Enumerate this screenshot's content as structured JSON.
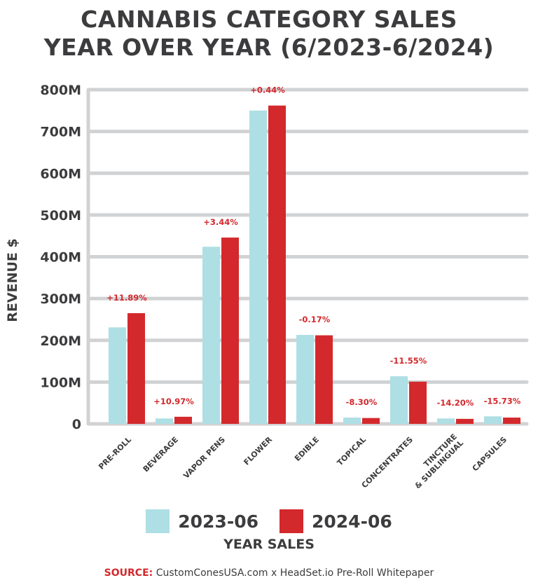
{
  "chart_data": {
    "type": "bar",
    "title": "CANNABIS CATEGORY SALES YEAR OVER YEAR (6/2023-6/2024)",
    "title_lines": [
      "CANNABIS CATEGORY SALES",
      "YEAR OVER YEAR (6/2023-6/2024)"
    ],
    "ylabel": "REVENUE $",
    "xlabel": "YEAR SALES",
    "ylim": [
      0,
      800
    ],
    "yticks": [
      0,
      100,
      200,
      300,
      400,
      500,
      600,
      700,
      800
    ],
    "ytick_labels": [
      "0",
      "100M",
      "200M",
      "300M",
      "400M",
      "500M",
      "600M",
      "700M",
      "800M"
    ],
    "grid": true,
    "legend_placement": "bottom",
    "categories": [
      "PRE-ROLL",
      "BEVERAGE",
      "VAPOR PENS",
      "FLOWER",
      "EDIBLE",
      "TOPICAL",
      "CONCENTRATES",
      "TINCTURE & SUBLINGUAL",
      "CAPSULES"
    ],
    "category_lines": [
      [
        "PRE-ROLL"
      ],
      [
        "BEVERAGE"
      ],
      [
        "VAPOR PENS"
      ],
      [
        "FLOWER"
      ],
      [
        "EDIBLE"
      ],
      [
        "TOPICAL"
      ],
      [
        "CONCENTRATES"
      ],
      [
        "TINCTURE",
        "& SUBLINGUAL"
      ],
      [
        "CAPSULES"
      ]
    ],
    "series": [
      {
        "name": "2023-06",
        "color": "#aedfe4",
        "values": [
          231,
          13,
          424,
          750,
          213,
          15,
          114,
          13,
          18
        ]
      },
      {
        "name": "2024-06",
        "color": "#d3292c",
        "values": [
          265,
          17,
          446,
          762,
          212,
          14,
          101,
          12,
          15
        ]
      }
    ],
    "annotations": [
      "+11.89%",
      "+10.97%",
      "+3.44%",
      "+0.44%",
      "-0.17%",
      "-8.30%",
      "-11.55%",
      "-14.20%",
      "-15.73%"
    ]
  },
  "source": {
    "label": "SOURCE:",
    "text": " CustomConesUSA.com x HeadSet.io Pre-Roll Whitepaper"
  }
}
